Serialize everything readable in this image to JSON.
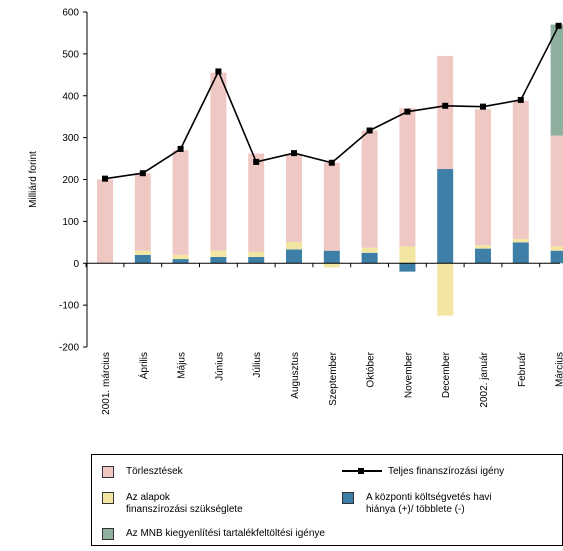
{
  "chart_data": {
    "type": "bar",
    "ylabel": "Milliárd forint",
    "ylim": [
      -200,
      600
    ],
    "yticks": [
      600,
      500,
      400,
      300,
      200,
      100,
      0,
      -100,
      -200
    ],
    "categories": [
      "2001. március",
      "Április",
      "Május",
      "Június",
      "Július",
      "Augusztus",
      "Szeptember",
      "Október",
      "November",
      "December",
      "2002. január",
      "Február",
      "Március"
    ],
    "series": [
      {
        "name": "A központi költségvetés havi hiánya (+)/ többlete (-)",
        "type": "bar",
        "color": "#3d7fa6",
        "values": [
          0,
          20,
          10,
          15,
          15,
          33,
          30,
          25,
          -20,
          225,
          35,
          50,
          30
        ]
      },
      {
        "name": "Az alapok finanszírozási szükséglete",
        "type": "bar",
        "color": "#f3e6a3",
        "values": [
          0,
          10,
          10,
          15,
          12,
          18,
          -10,
          12,
          40,
          -125,
          8,
          8,
          10
        ]
      },
      {
        "name": "Törlesztések",
        "type": "bar",
        "color": "#efc8c4",
        "values": [
          200,
          185,
          250,
          425,
          235,
          210,
          210,
          280,
          330,
          270,
          325,
          330,
          265
        ]
      },
      {
        "name": "Az MNB kiegyenlítési tartalékfeltöltési igénye",
        "type": "bar",
        "color": "#8fb09e",
        "values": [
          0,
          0,
          0,
          0,
          0,
          0,
          0,
          0,
          0,
          0,
          0,
          0,
          265
        ]
      },
      {
        "name": "Teljes finanszírozási igény",
        "type": "line",
        "color": "#000000",
        "values": [
          202,
          215,
          273,
          458,
          242,
          263,
          240,
          317,
          362,
          376,
          374,
          390,
          567
        ]
      }
    ]
  },
  "legend": {
    "torlesztesek": "Törlesztések",
    "teljes": "Teljes finanszírozási igény",
    "alapok_line1": "Az alapok",
    "alapok_line2": "finanszírozási szükséglete",
    "kozponti_line1": "A központi költségvetés havi",
    "kozponti_line2": "hiánya (+)/ többlete (-)",
    "mnb": "Az MNB kiegyenlítési tartalékfeltöltési igénye"
  }
}
